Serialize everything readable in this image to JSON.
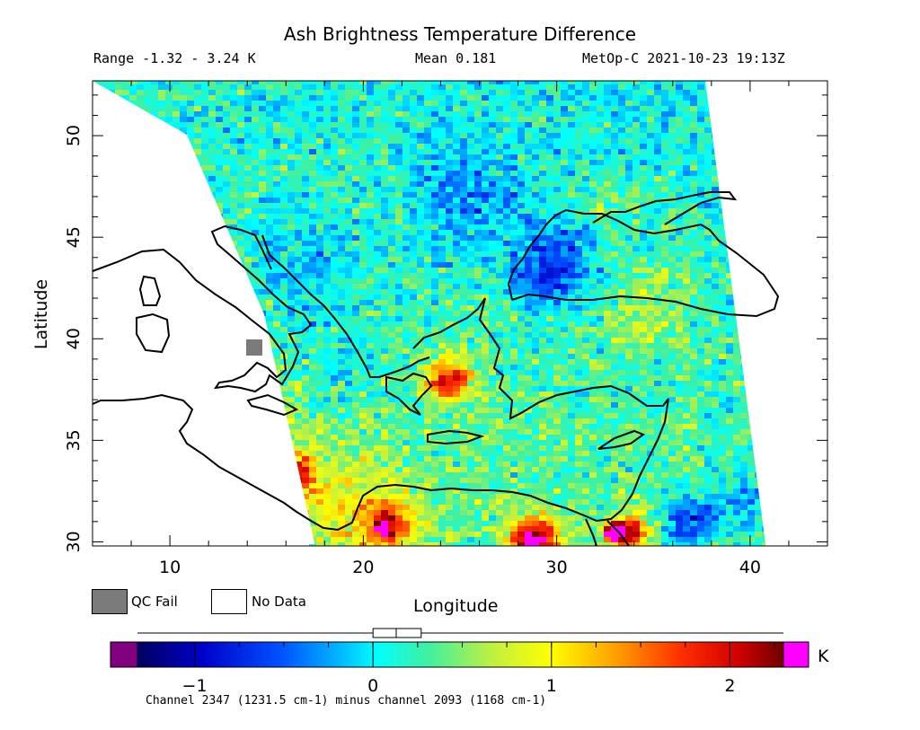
{
  "title": "Ash Brightness Temperature Difference",
  "header": {
    "range": "Range -1.32 - 3.24 K",
    "mean": "Mean 0.181",
    "satellite": "MetOp-C 2021-10-23 19:13Z"
  },
  "map": {
    "xlabel": "Longitude",
    "ylabel": "Latitude",
    "xlim": [
      6,
      44
    ],
    "ylim": [
      29.8,
      52.7
    ],
    "xticks": [
      10,
      20,
      30,
      40
    ],
    "yticks": [
      30,
      35,
      40,
      45,
      50
    ]
  },
  "legend": {
    "qc_fail": "QC Fail",
    "no_data": "No Data",
    "qc_fail_color": "#7a7a7a",
    "no_data_color": "#ffffff"
  },
  "colorbar": {
    "unit": "K",
    "vmin": -1.32,
    "vmax": 2.3,
    "ticks": [
      {
        "value": -1,
        "label": "-1"
      },
      {
        "value": 0,
        "label": "0"
      },
      {
        "value": 1,
        "label": "1"
      },
      {
        "value": 2,
        "label": "2"
      }
    ],
    "underflow_color": "#800080",
    "overflow_color": "#ff00ff",
    "boxplot": {
      "whisker_low": -1.32,
      "q1": 0.0,
      "median": 0.13,
      "q3": 0.27,
      "whisker_high": 3.24
    }
  },
  "footnote": "Channel 2347 (1231.5 cm-1) minus channel 2093 (1168 cm-1)"
}
